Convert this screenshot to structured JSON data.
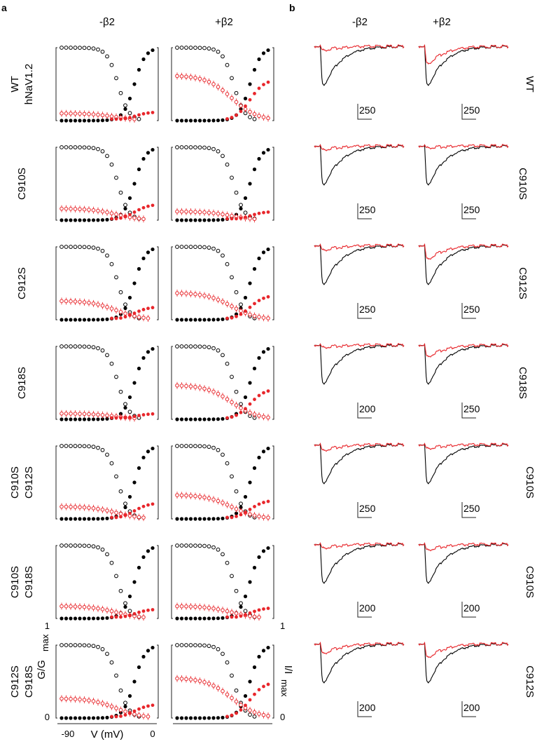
{
  "figure": {
    "panel_a": "a",
    "panel_b": "b",
    "col_minus": "-β2",
    "col_plus": "+β2",
    "ylabel_left": "G/G",
    "ylabel_left_sub": "max",
    "ylabel_right": "I/I",
    "ylabel_right_sub": "max",
    "xlabel": "V (mV)",
    "xtick_min": "-90",
    "xtick_max": "0",
    "ytick_top": "1",
    "ytick_bottom": "0"
  },
  "colors": {
    "control": "#000000",
    "treated": "#e8262b"
  },
  "rows": [
    {
      "name": "WT",
      "name2": "hNaV1.2",
      "trace_scale_minus": "250",
      "trace_scale_plus": "250"
    },
    {
      "name": "C910S",
      "name2": "",
      "trace_scale_minus": "250",
      "trace_scale_plus": "250"
    },
    {
      "name": "C912S",
      "name2": "",
      "trace_scale_minus": "250",
      "trace_scale_plus": "250"
    },
    {
      "name": "C918S",
      "name2": "",
      "trace_scale_minus": "200",
      "trace_scale_plus": "250"
    },
    {
      "name": "C910S",
      "name2": "C912S",
      "trace_scale_minus": "250",
      "trace_scale_plus": "250"
    },
    {
      "name": "C910S",
      "name2": "C918S",
      "trace_scale_minus": "200",
      "trace_scale_plus": "200"
    },
    {
      "name": "C912S",
      "name2": "C918S",
      "trace_scale_minus": "200",
      "trace_scale_plus": "200"
    }
  ],
  "chart_data": {
    "type": "scatter",
    "x": [
      -100,
      -95,
      -90,
      -85,
      -80,
      -75,
      -70,
      -65,
      -60,
      -55,
      -50,
      -45,
      -40,
      -35,
      -30,
      -25,
      -20,
      -15,
      -10,
      -5,
      0
    ],
    "xlim": [
      -100,
      0
    ],
    "ylim": [
      0,
      1
    ],
    "series_description": [
      "activation G/Gmax (filled circles)",
      "steady-state inactivation I/Imax (open circles)"
    ],
    "panels": [
      {
        "row": "WT hNaV1.2",
        "beta2": "-β2",
        "red_inact_level": 0.1,
        "red_act_level": 0.12
      },
      {
        "row": "WT hNaV1.2",
        "beta2": "+β2",
        "red_inact_level": 0.62,
        "red_act_level": 0.57
      },
      {
        "row": "C910S",
        "beta2": "-β2",
        "red_inact_level": 0.16,
        "red_act_level": 0.22
      },
      {
        "row": "C910S",
        "beta2": "+β2",
        "red_inact_level": 0.12,
        "red_act_level": 0.12
      },
      {
        "row": "C912S",
        "beta2": "-β2",
        "red_inact_level": 0.26,
        "red_act_level": 0.18
      },
      {
        "row": "C912S",
        "beta2": "+β2",
        "red_inact_level": 0.37,
        "red_act_level": 0.34
      },
      {
        "row": "C918S",
        "beta2": "-β2",
        "red_inact_level": 0.08,
        "red_act_level": 0.08
      },
      {
        "row": "C918S",
        "beta2": "+β2",
        "red_inact_level": 0.47,
        "red_act_level": 0.42
      },
      {
        "row": "C910S C912S",
        "beta2": "-β2",
        "red_inact_level": 0.17,
        "red_act_level": 0.22
      },
      {
        "row": "C910S C912S",
        "beta2": "+β2",
        "red_inact_level": 0.33,
        "red_act_level": 0.26
      },
      {
        "row": "C910S C918S",
        "beta2": "-β2",
        "red_inact_level": 0.17,
        "red_act_level": 0.13
      },
      {
        "row": "C910S C918S",
        "beta2": "+β2",
        "red_inact_level": 0.17,
        "red_act_level": 0.15
      },
      {
        "row": "C912S C918S",
        "beta2": "-β2",
        "red_inact_level": 0.27,
        "red_act_level": 0.19
      },
      {
        "row": "C912S C918S",
        "beta2": "+β2",
        "red_inact_level": 0.55,
        "red_act_level": 0.5
      }
    ],
    "traces": [
      {
        "row": "WT hNaV1.2",
        "beta2": "-β2",
        "red_peak": 0.1
      },
      {
        "row": "WT hNaV1.2",
        "beta2": "+β2",
        "red_peak": 0.45
      },
      {
        "row": "C910S",
        "beta2": "-β2",
        "red_peak": 0.1
      },
      {
        "row": "C910S",
        "beta2": "+β2",
        "red_peak": 0.05
      },
      {
        "row": "C912S",
        "beta2": "-β2",
        "red_peak": 0.12
      },
      {
        "row": "C912S",
        "beta2": "+β2",
        "red_peak": 0.35
      },
      {
        "row": "C918S",
        "beta2": "-β2",
        "red_peak": 0.06
      },
      {
        "row": "C918S",
        "beta2": "+β2",
        "red_peak": 0.3
      },
      {
        "row": "C910S C912S",
        "beta2": "-β2",
        "red_peak": 0.15
      },
      {
        "row": "C910S C912S",
        "beta2": "+β2",
        "red_peak": 0.1
      },
      {
        "row": "C910S C918S",
        "beta2": "-β2",
        "red_peak": 0.1
      },
      {
        "row": "C910S C918S",
        "beta2": "+β2",
        "red_peak": 0.15
      },
      {
        "row": "C912S C918S",
        "beta2": "-β2",
        "red_peak": 0.25
      },
      {
        "row": "C912S C918S",
        "beta2": "+β2",
        "red_peak": 0.35
      }
    ]
  }
}
